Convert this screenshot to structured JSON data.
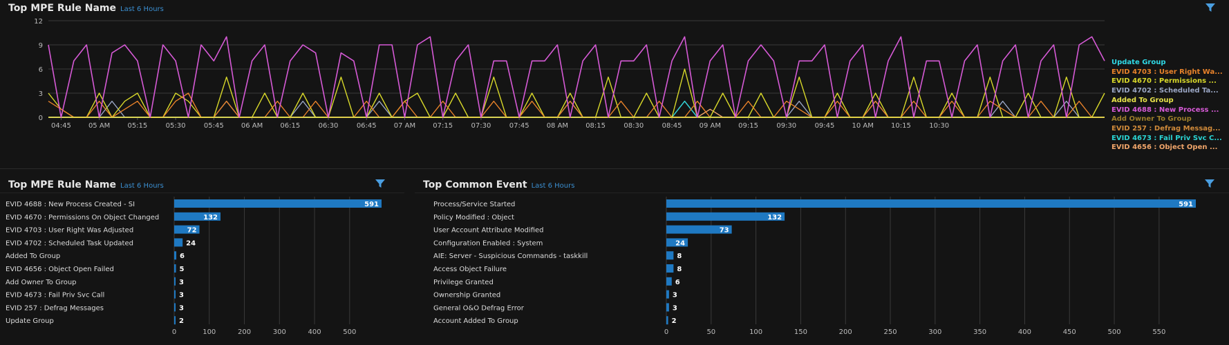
{
  "top_panel": {
    "title": "Top MPE Rule Name",
    "subtitle": "Last 6 Hours"
  },
  "bottom_left": {
    "title": "Top MPE Rule Name",
    "subtitle": "Last 6 Hours"
  },
  "bottom_right": {
    "title": "Top Common Event",
    "subtitle": "Last 6 Hours"
  },
  "icons": {
    "filter": "filter-icon"
  },
  "colors": {
    "accent": "#3b8fd1",
    "bar": "#1f79c2",
    "background": "#141414"
  },
  "chart_data": [
    {
      "type": "line",
      "title": "Top MPE Rule Name",
      "ylim": [
        0,
        12
      ],
      "yticks": [
        0,
        3,
        6,
        9,
        12
      ],
      "x_start": "04:40",
      "x_step_minutes": 5,
      "xticks": [
        "04:45",
        "05 AM",
        "05:15",
        "05:30",
        "05:45",
        "06 AM",
        "06:15",
        "06:30",
        "06:45",
        "07 AM",
        "07:15",
        "07:30",
        "07:45",
        "08 AM",
        "08:15",
        "08:30",
        "08:45",
        "09 AM",
        "09:15",
        "09:30",
        "09:45",
        "10 AM",
        "10:15",
        "10:30"
      ],
      "legend_position": "right",
      "series": [
        {
          "name": "Update Group",
          "color": "#2fd9e6",
          "values": [
            0,
            0,
            0,
            0,
            0,
            0,
            0,
            0,
            0,
            0,
            0,
            0,
            0,
            0,
            0,
            0,
            0,
            0,
            0,
            0,
            0,
            0,
            0,
            0,
            0,
            0,
            0,
            0,
            0,
            0,
            0,
            0,
            0,
            0,
            0,
            0,
            0,
            0,
            0,
            0,
            0,
            0,
            0,
            0,
            0,
            0,
            0,
            0,
            0,
            0,
            0,
            0,
            0,
            0,
            0,
            0,
            0,
            0,
            0,
            0,
            0,
            0,
            0,
            0,
            0,
            0,
            0,
            0,
            0,
            0,
            0,
            0,
            0,
            0,
            0,
            0,
            0,
            0,
            0,
            0,
            0,
            0,
            0,
            0
          ]
        },
        {
          "name": "EVID 4703 : User Right Wa...",
          "color": "#e8822a",
          "values": [
            2,
            1,
            0,
            0,
            2,
            0,
            1,
            2,
            0,
            0,
            2,
            3,
            0,
            0,
            2,
            0,
            0,
            0,
            2,
            0,
            0,
            2,
            0,
            0,
            0,
            2,
            0,
            0,
            2,
            0,
            0,
            2,
            0,
            0,
            0,
            2,
            0,
            0,
            2,
            0,
            0,
            2,
            0,
            0,
            0,
            2,
            0,
            0,
            2,
            0,
            0,
            2,
            0,
            0,
            0,
            2,
            0,
            0,
            2,
            1,
            0,
            0,
            2,
            0,
            0,
            2,
            0,
            0,
            2,
            0,
            0,
            2,
            0,
            0,
            2,
            1,
            0,
            0,
            2,
            0,
            0,
            2,
            0,
            0
          ]
        },
        {
          "name": "EVID 4670 : Permissions ...",
          "color": "#d8d82a",
          "values": [
            3,
            1,
            0,
            0,
            3,
            0,
            2,
            3,
            0,
            0,
            3,
            2,
            0,
            0,
            5,
            0,
            0,
            3,
            0,
            0,
            3,
            0,
            0,
            5,
            0,
            0,
            3,
            0,
            2,
            3,
            0,
            0,
            3,
            0,
            0,
            5,
            0,
            0,
            3,
            0,
            0,
            3,
            0,
            0,
            5,
            0,
            0,
            3,
            0,
            0,
            6,
            0,
            0,
            3,
            0,
            0,
            3,
            0,
            0,
            5,
            0,
            0,
            3,
            0,
            0,
            3,
            0,
            0,
            5,
            0,
            0,
            3,
            0,
            0,
            5,
            0,
            0,
            3,
            0,
            0,
            5,
            0,
            0,
            3
          ]
        },
        {
          "name": "EVID 4702 : Scheduled Ta...",
          "color": "#9aa6c4",
          "values": [
            0,
            0,
            0,
            0,
            0,
            2,
            0,
            0,
            0,
            0,
            0,
            0,
            0,
            0,
            2,
            0,
            0,
            0,
            0,
            0,
            2,
            0,
            0,
            0,
            0,
            0,
            2,
            0,
            0,
            0,
            0,
            0,
            0,
            0,
            0,
            0,
            0,
            0,
            0,
            0,
            0,
            2,
            0,
            0,
            0,
            0,
            0,
            0,
            0,
            0,
            2,
            0,
            0,
            0,
            0,
            0,
            0,
            0,
            0,
            2,
            0,
            0,
            0,
            0,
            0,
            2,
            0,
            0,
            0,
            0,
            0,
            0,
            0,
            0,
            0,
            2,
            0,
            0,
            0,
            0,
            2,
            0,
            0,
            0
          ]
        },
        {
          "name": "Added To Group",
          "color": "#e6e24a",
          "values": [
            0,
            0,
            0,
            0,
            0,
            0,
            0,
            0,
            0,
            0,
            0,
            0,
            0,
            0,
            0,
            0,
            0,
            0,
            0,
            0,
            0,
            0,
            0,
            0,
            0,
            0,
            0,
            0,
            0,
            0,
            0,
            0,
            0,
            0,
            0,
            0,
            0,
            0,
            0,
            0,
            0,
            0,
            0,
            0,
            0,
            0,
            0,
            0,
            0,
            0,
            0,
            0,
            0,
            0,
            0,
            0,
            0,
            0,
            0,
            0,
            0,
            0,
            0,
            0,
            0,
            0,
            0,
            0,
            0,
            0,
            0,
            0,
            0,
            0,
            0,
            0,
            0,
            0,
            0,
            0,
            0,
            0,
            0,
            0
          ]
        },
        {
          "name": "EVID 4688 : New Process ...",
          "color": "#d65ad6",
          "values": [
            9,
            0,
            7,
            9,
            0,
            8,
            9,
            7,
            0,
            9,
            7,
            0,
            9,
            7,
            10,
            0,
            7,
            9,
            0,
            7,
            9,
            8,
            0,
            8,
            7,
            0,
            9,
            9,
            0,
            9,
            10,
            0,
            7,
            9,
            0,
            7,
            7,
            0,
            7,
            7,
            9,
            0,
            7,
            9,
            0,
            7,
            7,
            9,
            0,
            7,
            10,
            0,
            7,
            9,
            0,
            7,
            9,
            7,
            0,
            7,
            7,
            9,
            0,
            7,
            9,
            0,
            7,
            10,
            0,
            7,
            7,
            0,
            7,
            9,
            0,
            7,
            9,
            0,
            7,
            9,
            0,
            9,
            10,
            7
          ]
        },
        {
          "name": "Add Owner To Group",
          "color": "#9c7d2a",
          "values": [
            0,
            0,
            0,
            0,
            0,
            0,
            0,
            0,
            0,
            0,
            0,
            0,
            0,
            0,
            0,
            0,
            0,
            0,
            0,
            0,
            0,
            0,
            0,
            0,
            0,
            0,
            0,
            0,
            0,
            0,
            0,
            0,
            0,
            0,
            0,
            0,
            0,
            0,
            0,
            0,
            0,
            0,
            0,
            0,
            0,
            0,
            0,
            0,
            0,
            0,
            0,
            0,
            0,
            0,
            0,
            0,
            0,
            0,
            0,
            0,
            0,
            0,
            0,
            0,
            0,
            0,
            0,
            0,
            0,
            0,
            0,
            0,
            0,
            0,
            0,
            0,
            0,
            0,
            0,
            0,
            0,
            0,
            0,
            0
          ]
        },
        {
          "name": "EVID 257 : Defrag Messag...",
          "color": "#d08a3a",
          "values": [
            0,
            0,
            0,
            0,
            0,
            0,
            0,
            0,
            0,
            0,
            0,
            0,
            0,
            0,
            0,
            0,
            0,
            0,
            0,
            0,
            0,
            0,
            0,
            0,
            0,
            0,
            0,
            0,
            0,
            0,
            0,
            0,
            0,
            0,
            0,
            0,
            0,
            0,
            0,
            0,
            0,
            0,
            0,
            0,
            0,
            0,
            0,
            0,
            0,
            0,
            0,
            0,
            0,
            0,
            0,
            0,
            0,
            0,
            0,
            0,
            0,
            0,
            0,
            0,
            0,
            0,
            0,
            0,
            0,
            0,
            0,
            0,
            0,
            0,
            0,
            0,
            0,
            0,
            0,
            0,
            0,
            0,
            0,
            0
          ]
        },
        {
          "name": "EVID 4673 : Fail Priv Svc C...",
          "color": "#2ad4d4",
          "values": [
            0,
            0,
            0,
            0,
            0,
            0,
            0,
            0,
            0,
            0,
            0,
            0,
            0,
            0,
            0,
            0,
            0,
            0,
            0,
            0,
            0,
            0,
            0,
            0,
            0,
            0,
            0,
            0,
            0,
            0,
            0,
            0,
            0,
            0,
            0,
            0,
            0,
            0,
            0,
            0,
            0,
            0,
            0,
            0,
            0,
            0,
            0,
            0,
            0,
            0,
            2,
            0,
            0,
            0,
            0,
            0,
            0,
            0,
            0,
            0,
            0,
            0,
            0,
            0,
            0,
            0,
            0,
            0,
            0,
            0,
            0,
            0,
            0,
            0,
            0,
            0,
            0,
            0,
            0,
            0,
            0,
            0,
            0,
            0
          ]
        },
        {
          "name": "EVID 4656 : Object Open ...",
          "color": "#f0a56a",
          "values": [
            0,
            0,
            0,
            0,
            0,
            0,
            0,
            0,
            0,
            0,
            0,
            0,
            0,
            0,
            0,
            0,
            0,
            0,
            0,
            0,
            0,
            0,
            0,
            0,
            0,
            0,
            0,
            0,
            0,
            0,
            0,
            0,
            0,
            0,
            0,
            0,
            0,
            0,
            0,
            0,
            0,
            0,
            0,
            0,
            0,
            0,
            0,
            0,
            0,
            0,
            0,
            0,
            1,
            0,
            0,
            0,
            0,
            0,
            0,
            0,
            0,
            0,
            0,
            0,
            0,
            0,
            0,
            0,
            0,
            0,
            0,
            0,
            0,
            0,
            0,
            0,
            0,
            0,
            0,
            0,
            0,
            0,
            0,
            0
          ]
        }
      ]
    },
    {
      "type": "bar",
      "orientation": "horizontal",
      "title": "Top MPE Rule Name",
      "categories": [
        "EVID 4688 : New Process Created - SI",
        "EVID 4670 : Permissions On Object Changed",
        "EVID 4703 : User Right Was Adjusted",
        "EVID 4702 : Scheduled Task Updated",
        "Added To Group",
        "EVID 4656 : Object Open Failed",
        "Add Owner To Group",
        "EVID 4673 : Fail Priv Svc Call",
        "EVID 257 : Defrag Messages",
        "Update Group"
      ],
      "values": [
        591,
        132,
        72,
        24,
        6,
        5,
        3,
        3,
        3,
        2
      ],
      "xlim": [
        0,
        591
      ],
      "xticks": [
        0,
        100,
        200,
        300,
        400,
        500
      ],
      "grid": true
    },
    {
      "type": "bar",
      "orientation": "horizontal",
      "title": "Top Common Event",
      "categories": [
        "Process/Service Started",
        "Policy Modified : Object",
        "User Account Attribute Modified",
        "Configuration Enabled : System",
        "AIE: Server - Suspicious Commands - taskkill",
        "Access Object Failure",
        "Privilege Granted",
        "Ownership Granted",
        "General O&O Defrag Error",
        "Account Added To Group"
      ],
      "values": [
        591,
        132,
        73,
        24,
        8,
        8,
        6,
        3,
        3,
        2
      ],
      "xlim": [
        0,
        591
      ],
      "xticks": [
        0,
        50,
        100,
        150,
        200,
        250,
        300,
        350,
        400,
        450,
        500,
        550
      ],
      "grid": true
    }
  ]
}
